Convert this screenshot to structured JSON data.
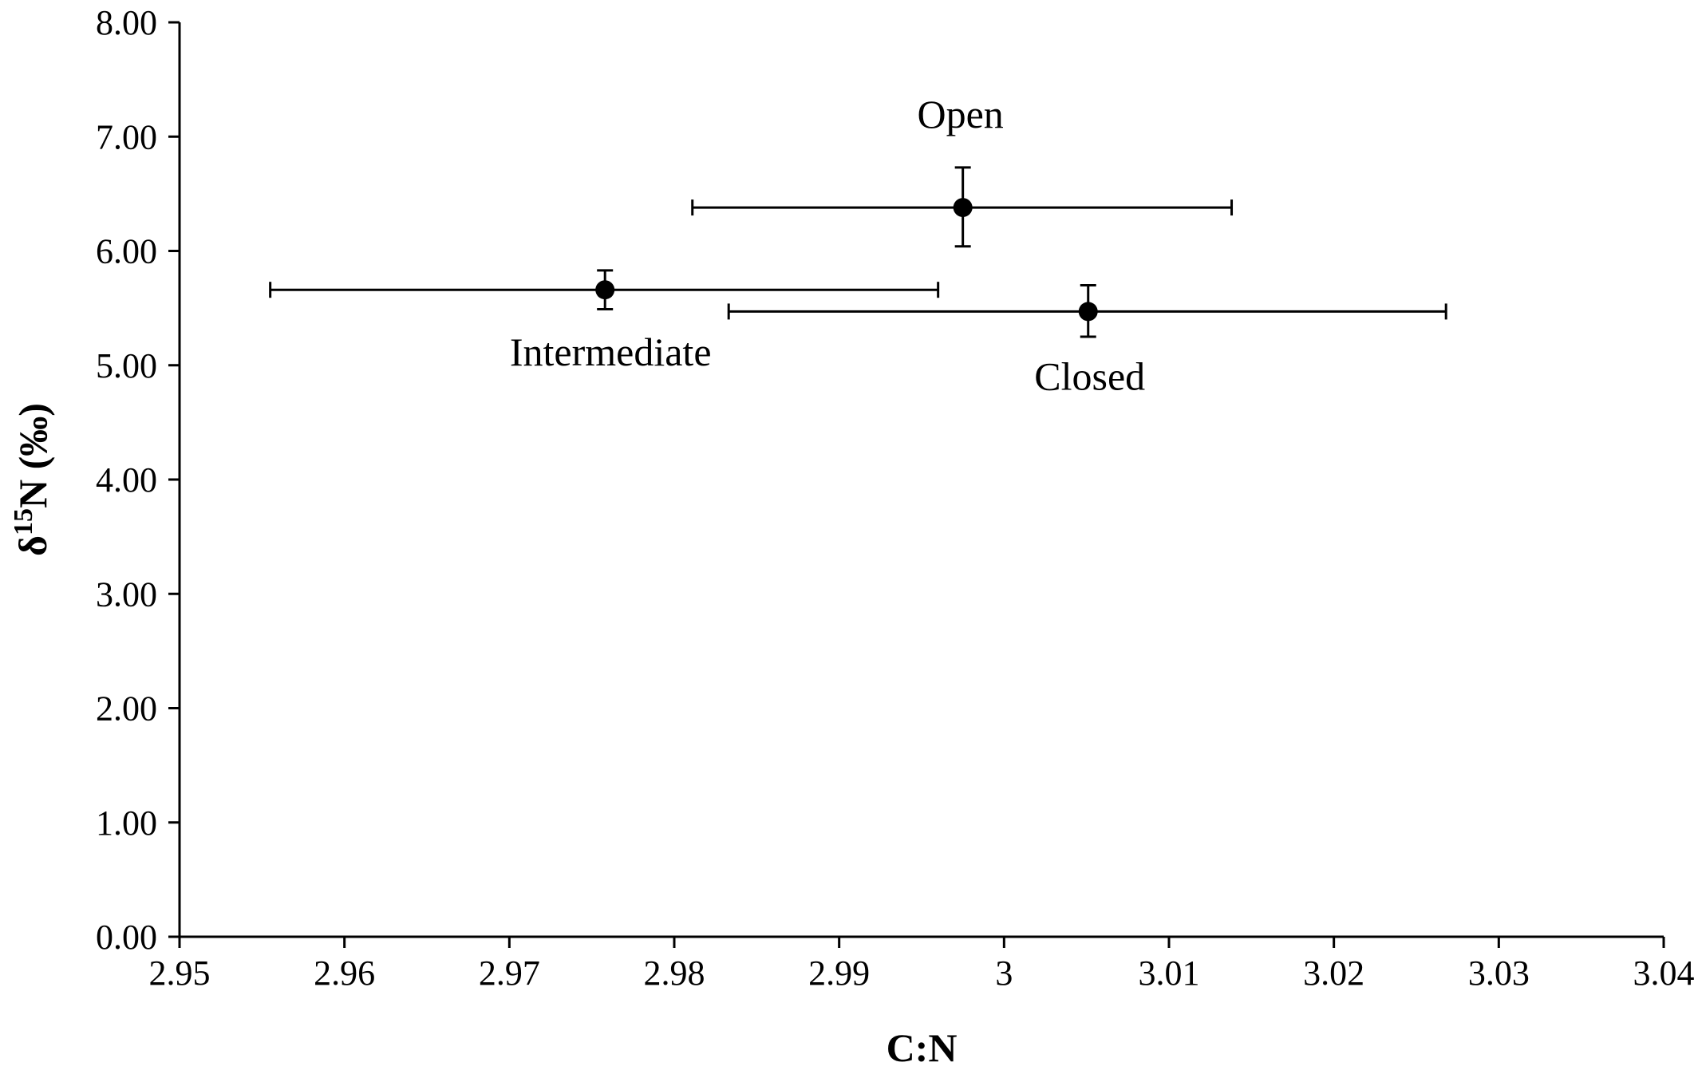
{
  "chart_data": {
    "type": "scatter",
    "title": "",
    "xlabel": "C:N",
    "ylabel": {
      "prefix": "δ",
      "superscript": "15",
      "suffix": "N (‰)"
    },
    "xlim": [
      2.95,
      3.04
    ],
    "ylim": [
      0,
      8
    ],
    "x_ticks": [
      "2.95",
      "2.96",
      "2.97",
      "2.98",
      "2.99",
      "3",
      "3.01",
      "3.02",
      "3.03",
      "3.04"
    ],
    "y_ticks": [
      "0.00",
      "1.00",
      "2.00",
      "3.00",
      "4.00",
      "5.00",
      "6.00",
      "7.00",
      "8.00"
    ],
    "grid": false,
    "legend": "none",
    "points": [
      {
        "label": "Open",
        "x": 2.9975,
        "y": 6.38,
        "x_err": [
          2.9811,
          3.0138
        ],
        "y_err": [
          6.04,
          6.73
        ],
        "label_pos": "above"
      },
      {
        "label": "Intermediate",
        "x": 2.9758,
        "y": 5.66,
        "x_err": [
          2.9555,
          2.996
        ],
        "y_err": [
          5.49,
          5.83
        ],
        "label_pos": "below-left"
      },
      {
        "label": "Closed",
        "x": 3.0051,
        "y": 5.47,
        "x_err": [
          2.9833,
          3.0268
        ],
        "y_err": [
          5.25,
          5.7
        ],
        "label_pos": "below"
      }
    ],
    "colors": {
      "marker": "#000000",
      "axis": "#000000"
    }
  }
}
